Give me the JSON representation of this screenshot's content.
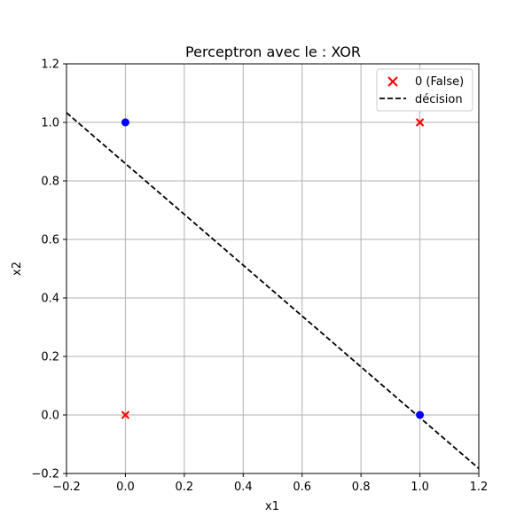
{
  "chart_data": {
    "type": "scatter",
    "title": "Perceptron avec le : XOR",
    "xlabel": "x1",
    "ylabel": "x2",
    "xlim": [
      -0.2,
      1.2
    ],
    "ylim": [
      -0.2,
      1.2
    ],
    "xticks": [
      -0.2,
      0.0,
      0.2,
      0.4,
      0.6,
      0.8,
      1.0,
      1.2
    ],
    "yticks": [
      -0.2,
      0.0,
      0.2,
      0.4,
      0.6,
      0.8,
      1.0,
      1.2
    ],
    "xtick_labels": [
      "−0.2",
      "0.0",
      "0.2",
      "0.4",
      "0.6",
      "0.8",
      "1.0",
      "1.2"
    ],
    "ytick_labels": [
      "−0.2",
      "0.0",
      "0.2",
      "0.4",
      "0.6",
      "0.8",
      "1.0",
      "1.2"
    ],
    "grid": true,
    "legend_position": "top-right",
    "series": [
      {
        "legend": "",
        "marker": "circle",
        "color": "#0000ff",
        "points": [
          {
            "x": 0,
            "y": 1
          },
          {
            "x": 1,
            "y": 0
          }
        ]
      },
      {
        "legend": "0 (False)",
        "marker": "x",
        "color": "#ff0000",
        "points": [
          {
            "x": 0,
            "y": 0
          },
          {
            "x": 1,
            "y": 1
          }
        ]
      }
    ],
    "decision_line": {
      "legend": "décision",
      "color": "#000000",
      "style": "dashed",
      "x": [
        -0.2,
        1.2
      ],
      "y": [
        1.033,
        -0.183
      ]
    }
  }
}
